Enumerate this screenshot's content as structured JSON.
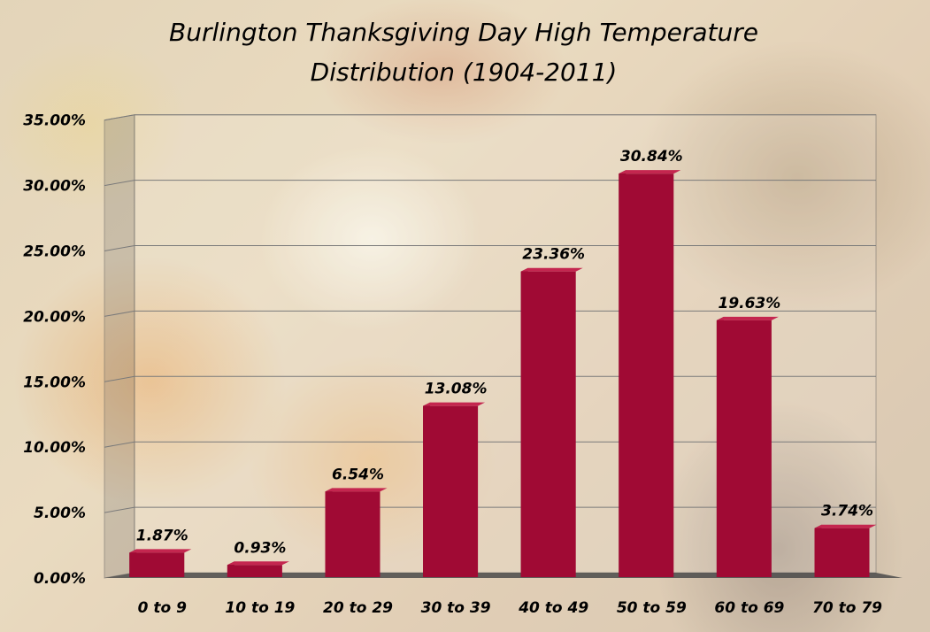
{
  "chart_data": {
    "type": "bar",
    "title_lines": [
      "Burlington Thanksgiving Day High Temperature",
      "Distribution (1904-2011)"
    ],
    "categories": [
      "0 to 9",
      "10 to 19",
      "20 to 29",
      "30 to 39",
      "40 to 49",
      "50 to 59",
      "60 to 69",
      "70 to 79"
    ],
    "values": [
      1.87,
      0.93,
      6.54,
      13.08,
      23.36,
      30.84,
      19.63,
      3.74
    ],
    "value_labels": [
      "1.87%",
      "0.93%",
      "6.54%",
      "13.08%",
      "23.36%",
      "30.84%",
      "19.63%",
      "3.74%"
    ],
    "y_ticks": [
      0,
      5,
      10,
      15,
      20,
      25,
      30,
      35
    ],
    "y_tick_labels": [
      "0.00%",
      "5.00%",
      "10.00%",
      "15.00%",
      "20.00%",
      "25.00%",
      "30.00%",
      "35.00%"
    ],
    "ylim": [
      0,
      35
    ],
    "xlabel": "",
    "ylabel": "",
    "grid": true,
    "legend": "none",
    "style": "3d-column",
    "colors": {
      "bar_front": "#a00a34",
      "bar_top": "#c4264f",
      "bar_side": "#6e0020",
      "gridline": "#7a7a7a",
      "floor": "#4a4a4a"
    }
  }
}
